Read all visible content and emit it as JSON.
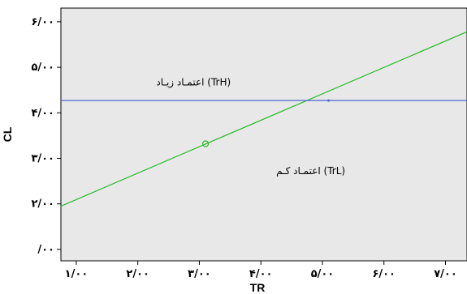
{
  "chart_data": {
    "type": "line",
    "title": "",
    "xlabel": "TR",
    "ylabel": "CL",
    "xlim": [
      0.75,
      7.35
    ],
    "ylim": [
      0.75,
      6.3
    ],
    "grid": false,
    "legend": "none",
    "background_color": "#e8e8e8",
    "x_ticks": [
      {
        "value": 1,
        "label": "۱/۰۰"
      },
      {
        "value": 2,
        "label": "۲/۰۰"
      },
      {
        "value": 3,
        "label": "۳/۰۰"
      },
      {
        "value": 4,
        "label": "۴/۰۰"
      },
      {
        "value": 5,
        "label": "۵/۰۰"
      },
      {
        "value": 6,
        "label": "۶/۰۰"
      },
      {
        "value": 7,
        "label": "۷/۰۰"
      }
    ],
    "y_ticks": [
      {
        "value": 1,
        "label": "/۰۰"
      },
      {
        "value": 2,
        "label": "۲/۰۰"
      },
      {
        "value": 3,
        "label": "۳/۰۰"
      },
      {
        "value": 4,
        "label": "۴/۰۰"
      },
      {
        "value": 5,
        "label": "۵/۰۰"
      },
      {
        "value": 6,
        "label": "۶/۰۰"
      }
    ],
    "series": [
      {
        "color": "#22bb22",
        "x": [
          0.75,
          7.35
        ],
        "y": [
          1.95,
          5.78
        ],
        "marker": {
          "x": 3.1,
          "y": 3.32
        }
      },
      {
        "color": "#4d66cc",
        "x": [
          0.75,
          7.35
        ],
        "y": [
          4.27,
          4.27
        ],
        "marker": {
          "x": 5.1,
          "y": 4.27
        }
      }
    ],
    "annotations": [
      {
        "text": "(TrH) اعتمـاد زيـاد",
        "x": 2.3,
        "y": 4.6
      },
      {
        "text": "(TrL) اعتمـاد كـم",
        "x": 4.25,
        "y": 2.65
      }
    ]
  }
}
